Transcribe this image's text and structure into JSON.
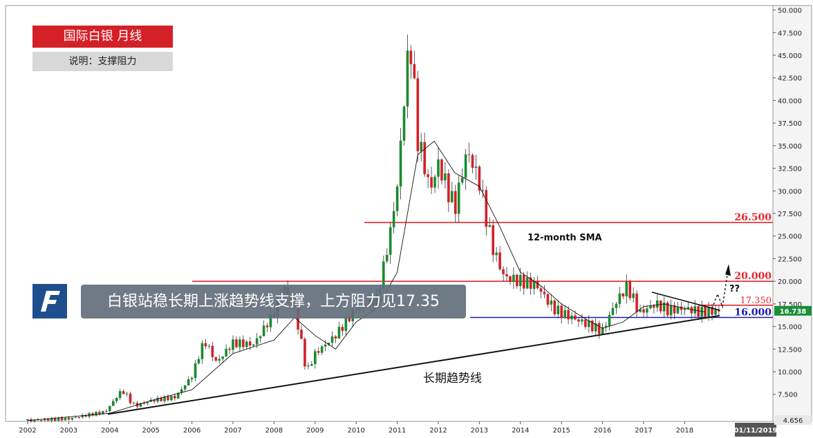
{
  "header": {
    "title": "国际白银  月线",
    "note": "说明：支撑阻力"
  },
  "banner": {
    "text": "白银站稳长期上涨趋势线支撑，上方阻力见17.35"
  },
  "annotations": {
    "sma_label": "12-month SMA",
    "trend_label": "长期趋势线",
    "question": "??"
  },
  "colors": {
    "resistance": "#e8262c",
    "support": "#1a1aa8",
    "up_candle": "#1b8a2e",
    "down_candle": "#d42027",
    "price_badge": "#1a8f3a",
    "logo": "#1f4e8f"
  },
  "chart_data": {
    "type": "candlestick",
    "instrument": "国际白银",
    "timeframe": "月线",
    "current_price": "16.738",
    "last_date": "01/11/2019",
    "low_label": "4.656",
    "ylim": [
      4.5,
      50.5
    ],
    "y_ticks": [
      "7.500",
      "10.000",
      "12.500",
      "15.000",
      "17.500",
      "20.000",
      "22.500",
      "25.000",
      "27.500",
      "30.000",
      "32.500",
      "35.000",
      "37.500",
      "40.000",
      "42.500",
      "45.000",
      "47.500",
      "50.000"
    ],
    "x_ticks": [
      "2002",
      "2003",
      "2004",
      "2005",
      "2006",
      "2007",
      "2008",
      "2009",
      "2010",
      "2011",
      "2012",
      "2013",
      "2014",
      "2015",
      "2016",
      "2017",
      "2018"
    ],
    "levels": [
      {
        "value": 26.5,
        "label": "26.500",
        "kind": "resistance"
      },
      {
        "value": 20.0,
        "label": "20.000",
        "kind": "resistance"
      },
      {
        "value": 17.35,
        "label": "17.350",
        "kind": "resistance"
      },
      {
        "value": 16.0,
        "label": "16.000",
        "kind": "support"
      }
    ],
    "trendline": {
      "start": {
        "t": 2003.95,
        "y": 5.3
      },
      "end": {
        "t": 2018.85,
        "y": 16.2
      }
    },
    "triangle_upper": {
      "start": {
        "t": 2017.2,
        "y": 18.8
      },
      "end": {
        "t": 2018.85,
        "y": 16.8
      }
    },
    "points": [
      {
        "t": 2002.0,
        "y": 4.6
      },
      {
        "t": 2003.0,
        "y": 4.8
      },
      {
        "t": 2003.9,
        "y": 5.6
      },
      {
        "t": 2004.3,
        "y": 8.0
      },
      {
        "t": 2004.6,
        "y": 6.2
      },
      {
        "t": 2005.0,
        "y": 6.8
      },
      {
        "t": 2005.6,
        "y": 7.2
      },
      {
        "t": 2006.0,
        "y": 9.5
      },
      {
        "t": 2006.3,
        "y": 13.5
      },
      {
        "t": 2006.6,
        "y": 11.0
      },
      {
        "t": 2007.0,
        "y": 13.2
      },
      {
        "t": 2007.5,
        "y": 13.0
      },
      {
        "t": 2008.0,
        "y": 16.5
      },
      {
        "t": 2008.2,
        "y": 19.5
      },
      {
        "t": 2008.5,
        "y": 17.0
      },
      {
        "t": 2008.8,
        "y": 10.0
      },
      {
        "t": 2009.0,
        "y": 12.0
      },
      {
        "t": 2009.5,
        "y": 14.0
      },
      {
        "t": 2010.0,
        "y": 17.0
      },
      {
        "t": 2010.5,
        "y": 18.0
      },
      {
        "t": 2010.8,
        "y": 24.5
      },
      {
        "t": 2011.0,
        "y": 30.5
      },
      {
        "t": 2011.3,
        "y": 47.5
      },
      {
        "t": 2011.5,
        "y": 36.0
      },
      {
        "t": 2011.8,
        "y": 30.0
      },
      {
        "t": 2012.0,
        "y": 33.0
      },
      {
        "t": 2012.4,
        "y": 28.0
      },
      {
        "t": 2012.7,
        "y": 34.5
      },
      {
        "t": 2013.0,
        "y": 31.0
      },
      {
        "t": 2013.3,
        "y": 24.0
      },
      {
        "t": 2013.6,
        "y": 20.5
      },
      {
        "t": 2014.0,
        "y": 20.0
      },
      {
        "t": 2014.4,
        "y": 19.5
      },
      {
        "t": 2014.8,
        "y": 17.0
      },
      {
        "t": 2015.0,
        "y": 16.5
      },
      {
        "t": 2015.5,
        "y": 15.5
      },
      {
        "t": 2016.0,
        "y": 14.5
      },
      {
        "t": 2016.3,
        "y": 17.5
      },
      {
        "t": 2016.6,
        "y": 19.5
      },
      {
        "t": 2016.9,
        "y": 16.5
      },
      {
        "t": 2017.3,
        "y": 17.5
      },
      {
        "t": 2017.6,
        "y": 16.8
      },
      {
        "t": 2018.0,
        "y": 17.0
      },
      {
        "t": 2018.4,
        "y": 16.6
      },
      {
        "t": 2018.85,
        "y": 16.7
      }
    ],
    "sma": [
      {
        "t": 2002.0,
        "y": 4.6
      },
      {
        "t": 2004.0,
        "y": 5.4
      },
      {
        "t": 2005.0,
        "y": 6.8
      },
      {
        "t": 2006.0,
        "y": 8.0
      },
      {
        "t": 2007.0,
        "y": 12.0
      },
      {
        "t": 2008.0,
        "y": 13.5
      },
      {
        "t": 2008.5,
        "y": 16.0
      },
      {
        "t": 2009.0,
        "y": 14.0
      },
      {
        "t": 2009.5,
        "y": 12.5
      },
      {
        "t": 2010.0,
        "y": 15.5
      },
      {
        "t": 2010.5,
        "y": 17.0
      },
      {
        "t": 2011.0,
        "y": 21.0
      },
      {
        "t": 2011.5,
        "y": 34.0
      },
      {
        "t": 2011.9,
        "y": 35.5
      },
      {
        "t": 2012.4,
        "y": 32.0
      },
      {
        "t": 2012.8,
        "y": 31.0
      },
      {
        "t": 2013.0,
        "y": 30.5
      },
      {
        "t": 2013.5,
        "y": 26.0
      },
      {
        "t": 2014.0,
        "y": 21.0
      },
      {
        "t": 2014.5,
        "y": 19.5
      },
      {
        "t": 2015.0,
        "y": 17.5
      },
      {
        "t": 2015.6,
        "y": 15.8
      },
      {
        "t": 2016.0,
        "y": 14.8
      },
      {
        "t": 2016.5,
        "y": 15.5
      },
      {
        "t": 2017.0,
        "y": 17.2
      },
      {
        "t": 2017.5,
        "y": 17.5
      },
      {
        "t": 2018.0,
        "y": 17.0
      },
      {
        "t": 2018.5,
        "y": 16.6
      }
    ]
  }
}
